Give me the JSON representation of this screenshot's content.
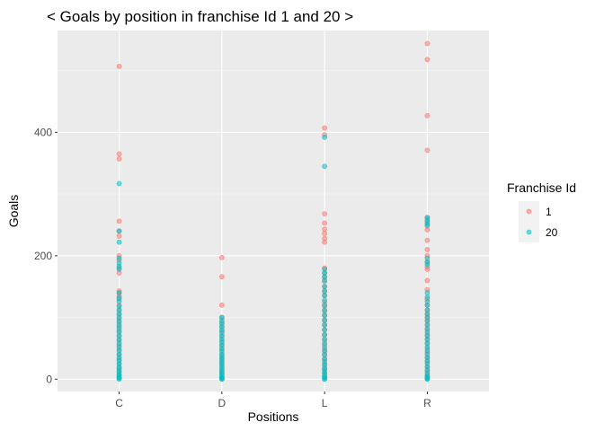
{
  "colors": {
    "panel_background": "#EBEBEB",
    "grid_major": "#FFFFFF",
    "grid_minor": "#F5F5F5",
    "series_1": "#F8766D",
    "series_20": "#00BFC4",
    "tick_text": "#4D4D4D"
  },
  "chart_data": {
    "type": "scatter",
    "title": "< Goals by position in franchise Id 1 and 20 >",
    "xlabel": "Positions",
    "ylabel": "Goals",
    "categories": [
      "C",
      "D",
      "L",
      "R"
    ],
    "ylim": [
      -20,
      565
    ],
    "yticks": [
      0,
      200,
      400
    ],
    "ytick_labels": [
      "0",
      "200",
      "400"
    ],
    "grid": true,
    "legend": {
      "title": "Franchise Id",
      "position": "right",
      "entries": [
        "1",
        "20"
      ]
    },
    "series": [
      {
        "name": "1",
        "color": "#F8766D",
        "points": [
          {
            "x": "C",
            "y": [
              507,
              365,
              357,
              256,
              240,
              232,
              200,
              193,
              180,
              172,
              143,
              140,
              135,
              130,
              120,
              112,
              105,
              98,
              92,
              85,
              78,
              70,
              63,
              55,
              48,
              40,
              32,
              25,
              18,
              12,
              6,
              2
            ]
          },
          {
            "x": "D",
            "y": [
              197,
              166,
              120,
              100,
              92,
              85,
              78,
              70,
              62,
              55,
              48,
              40,
              33,
              26,
              20,
              14,
              9,
              4,
              1
            ]
          },
          {
            "x": "L",
            "y": [
              407,
              396,
              268,
              253,
              243,
              236,
              228,
              222,
              180,
              172,
              165,
              158,
              150,
              142,
              135,
              125,
              118,
              110,
              103,
              95,
              88,
              80,
              72,
              63,
              55,
              47,
              40,
              32,
              24,
              17,
              10,
              4
            ]
          },
          {
            "x": "R",
            "y": [
              544,
              518,
              427,
              371,
              262,
              256,
              248,
              242,
              225,
              210,
              200,
              190,
              182,
              178,
              160,
              145,
              130,
              120,
              112,
              105,
              100,
              95,
              88,
              80,
              72,
              65,
              58,
              50,
              43,
              35,
              28,
              20,
              13,
              6,
              2
            ]
          }
        ]
      },
      {
        "name": "20",
        "color": "#00BFC4",
        "points": [
          {
            "x": "C",
            "y": [
              317,
              240,
              222,
              196,
              188,
              183,
              178,
              140,
              132,
              126,
              118,
              112,
              106,
              100,
              94,
              88,
              82,
              76,
              70,
              64,
              58,
              52,
              46,
              40,
              35,
              30,
              25,
              20,
              16,
              12,
              8,
              5,
              2,
              0
            ]
          },
          {
            "x": "D",
            "y": [
              100,
              95,
              90,
              85,
              80,
              75,
              70,
              65,
              60,
              55,
              50,
              45,
              40,
              36,
              32,
              28,
              24,
              20,
              16,
              12,
              9,
              6,
              3,
              1,
              0
            ]
          },
          {
            "x": "L",
            "y": [
              392,
              345,
              178,
              172,
              166,
              160,
              150,
              143,
              136,
              128,
              120,
              112,
              104,
              96,
              88,
              80,
              72,
              65,
              58,
              51,
              45,
              39,
              33,
              28,
              23,
              18,
              14,
              10,
              6,
              3,
              1,
              0
            ]
          },
          {
            "x": "R",
            "y": [
              262,
              258,
              253,
              250,
              196,
              190,
              186,
              140,
              133,
              126,
              120,
              112,
              106,
              100,
              94,
              88,
              82,
              76,
              70,
              64,
              58,
              52,
              46,
              40,
              35,
              30,
              25,
              20,
              15,
              10,
              6,
              3,
              1,
              0
            ]
          }
        ]
      }
    ]
  }
}
